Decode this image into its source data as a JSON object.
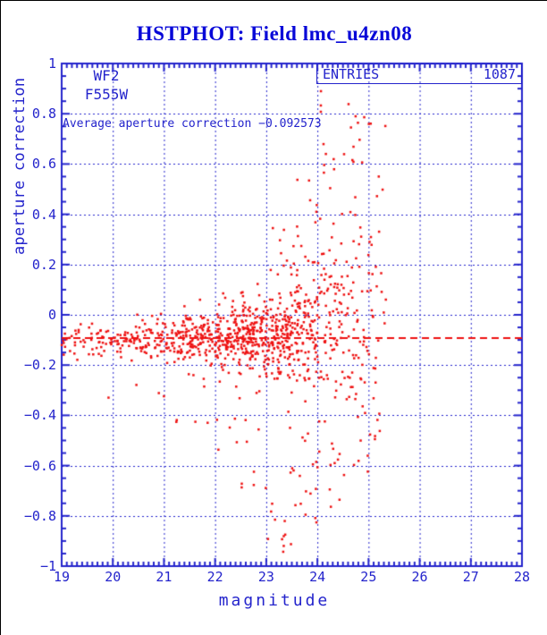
{
  "title": "HSTPHOT: Field lmc_u4zn08",
  "colors": {
    "title_blue": "#0808d8",
    "axis_blue": "#2424cc",
    "data_red": "#ee1111"
  },
  "annotations": {
    "detector": "WF2",
    "filter": "F555W",
    "average_text": "Average aperture correction −0.092573",
    "entries_label": "ENTRIES",
    "entries_value": "1087"
  },
  "chart_data": {
    "type": "scatter",
    "title": "HSTPHOT: Field lmc_u4zn08",
    "xlabel": "magnitude",
    "ylabel": "aperture correction",
    "xlim": [
      19,
      28
    ],
    "ylim": [
      -1,
      1
    ],
    "grid": true,
    "grid_style": "dotted-blue at every integer magnitude and every 0.2 correction",
    "xticks": [
      {
        "v": 19,
        "label": "19"
      },
      {
        "v": 20,
        "label": "20"
      },
      {
        "v": 21,
        "label": "21"
      },
      {
        "v": 22,
        "label": "22"
      },
      {
        "v": 23,
        "label": "23"
      },
      {
        "v": 24,
        "label": "24"
      },
      {
        "v": 25,
        "label": "25"
      },
      {
        "v": 26,
        "label": "26"
      },
      {
        "v": 27,
        "label": "27"
      },
      {
        "v": 28,
        "label": "28"
      }
    ],
    "yticks": [
      {
        "v": 1,
        "label": "1"
      },
      {
        "v": 0.8,
        "label": "0.8"
      },
      {
        "v": 0.6,
        "label": "0.6"
      },
      {
        "v": 0.4,
        "label": "0.4"
      },
      {
        "v": 0.2,
        "label": "0.2"
      },
      {
        "v": 0,
        "label": "0"
      },
      {
        "v": -0.2,
        "label": "−0.2"
      },
      {
        "v": -0.4,
        "label": "−0.4"
      },
      {
        "v": -0.6,
        "label": "−0.6"
      },
      {
        "v": -0.8,
        "label": "−0.8"
      },
      {
        "v": -1,
        "label": "−1"
      }
    ],
    "minor_tick_step_x": 0.1,
    "minor_tick_step_y": 0.05,
    "entries": 1087,
    "average_aperture_correction": -0.092573,
    "average_line": {
      "y": -0.092573,
      "style": "dashed",
      "color": "#ee1111"
    },
    "points_note": "1087 points; dense band near correction -0.09 for mag 19-24, spread widens to ±0.9 by mag 24-25.3; reconstructed from seeded bin model below",
    "points_model": {
      "seed": 987654,
      "bins": [
        {
          "x0": 19.0,
          "x1": 19.5,
          "n": 24,
          "mean": -0.095,
          "sigma": 0.028,
          "tails": []
        },
        {
          "x0": 19.5,
          "x1": 20.0,
          "n": 30,
          "mean": -0.095,
          "sigma": 0.03,
          "tails": [
            {
              "n": 1,
              "y0": -0.36,
              "y1": -0.3
            }
          ]
        },
        {
          "x0": 20.0,
          "x1": 20.5,
          "n": 38,
          "mean": -0.09,
          "sigma": 0.035,
          "tails": [
            {
              "n": 1,
              "y0": -0.3,
              "y1": -0.22
            }
          ]
        },
        {
          "x0": 20.5,
          "x1": 21.0,
          "n": 48,
          "mean": -0.09,
          "sigma": 0.04,
          "tails": [
            {
              "n": 2,
              "y0": -0.35,
              "y1": -0.22
            }
          ]
        },
        {
          "x0": 21.0,
          "x1": 21.5,
          "n": 66,
          "mean": -0.09,
          "sigma": 0.045,
          "tails": [
            {
              "n": 3,
              "y0": -0.45,
              "y1": -0.22
            }
          ]
        },
        {
          "x0": 21.5,
          "x1": 22.0,
          "n": 82,
          "mean": -0.09,
          "sigma": 0.05,
          "tails": [
            {
              "n": 4,
              "y0": -0.5,
              "y1": -0.25
            }
          ]
        },
        {
          "x0": 22.0,
          "x1": 22.5,
          "n": 110,
          "mean": -0.09,
          "sigma": 0.06,
          "tails": [
            {
              "n": 7,
              "y0": -0.55,
              "y1": -0.28
            },
            {
              "n": 2,
              "y0": 0.02,
              "y1": 0.1
            }
          ]
        },
        {
          "x0": 22.5,
          "x1": 23.0,
          "n": 140,
          "mean": -0.085,
          "sigma": 0.07,
          "tails": [
            {
              "n": 10,
              "y0": -0.7,
              "y1": -0.3
            },
            {
              "n": 4,
              "y0": 0.03,
              "y1": 0.15
            }
          ]
        },
        {
          "x0": 23.0,
          "x1": 23.5,
          "n": 138,
          "mean": -0.08,
          "sigma": 0.09,
          "tails": [
            {
              "n": 14,
              "y0": -0.95,
              "y1": -0.35
            },
            {
              "n": 9,
              "y0": 0.05,
              "y1": 0.35
            }
          ]
        },
        {
          "x0": 23.5,
          "x1": 24.0,
          "n": 110,
          "mean": -0.07,
          "sigma": 0.12,
          "tails": [
            {
              "n": 16,
              "y0": -0.95,
              "y1": -0.4
            },
            {
              "n": 14,
              "y0": 0.1,
              "y1": 0.55
            }
          ]
        },
        {
          "x0": 24.0,
          "x1": 24.5,
          "n": 75,
          "mean": -0.05,
          "sigma": 0.18,
          "tails": [
            {
              "n": 10,
              "y0": -0.85,
              "y1": -0.5
            },
            {
              "n": 16,
              "y0": 0.2,
              "y1": 0.9
            }
          ]
        },
        {
          "x0": 24.5,
          "x1": 25.0,
          "n": 58,
          "mean": -0.04,
          "sigma": 0.24,
          "tails": [
            {
              "n": 6,
              "y0": -0.65,
              "y1": -0.5
            },
            {
              "n": 13,
              "y0": 0.3,
              "y1": 0.9
            }
          ]
        },
        {
          "x0": 25.0,
          "x1": 25.35,
          "n": 28,
          "mean": -0.03,
          "sigma": 0.25,
          "tails": [
            {
              "n": 2,
              "y0": -0.6,
              "y1": -0.4
            },
            {
              "n": 6,
              "y0": 0.3,
              "y1": 0.85
            }
          ]
        }
      ]
    }
  }
}
